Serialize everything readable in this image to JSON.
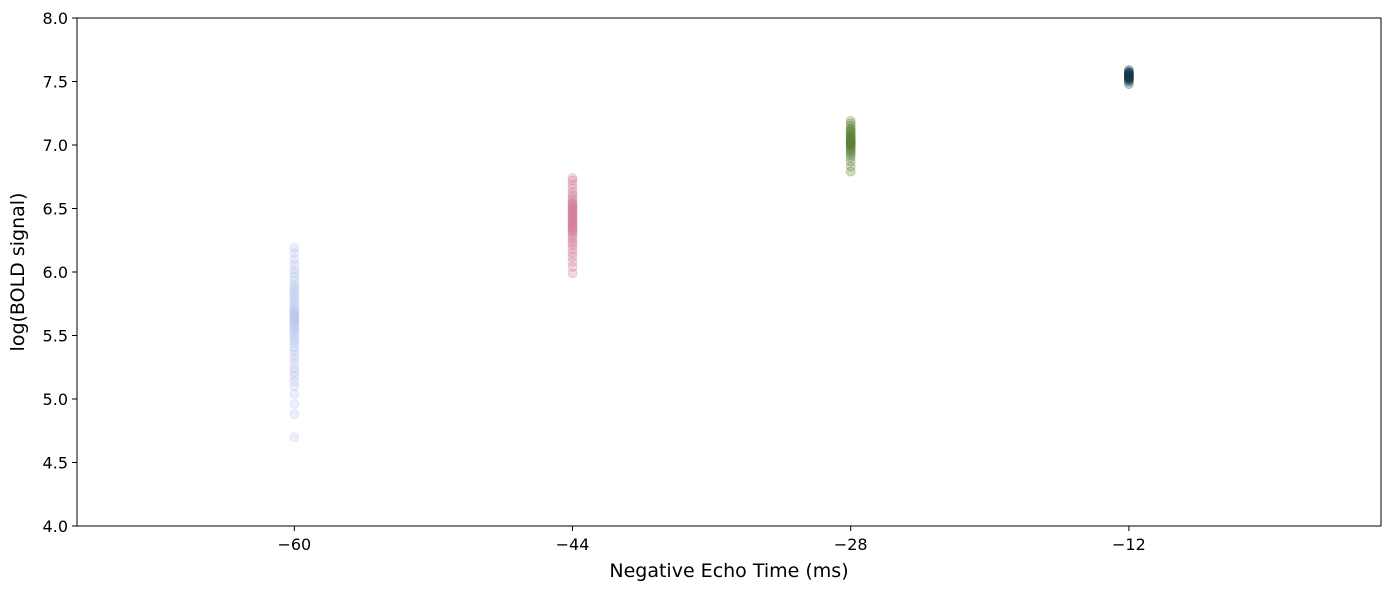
{
  "chart_data": {
    "type": "scatter",
    "title": "",
    "xlabel": "Negative Echo Time (ms)",
    "ylabel": "log(BOLD signal)",
    "xlim": [
      -72.5,
      2.5
    ],
    "ylim": [
      4.0,
      8.0
    ],
    "xticks": [
      -60,
      -44,
      -28,
      -12
    ],
    "xtick_labels": [
      "−60",
      "−44",
      "−28",
      "−12"
    ],
    "yticks": [
      4.0,
      4.5,
      5.0,
      5.5,
      6.0,
      6.5,
      7.0,
      7.5,
      8.0
    ],
    "ytick_labels": [
      "4.0",
      "4.5",
      "5.0",
      "5.5",
      "6.0",
      "6.5",
      "7.0",
      "7.5",
      "8.0"
    ],
    "grid": false,
    "legend": false,
    "series": [
      {
        "color": "#b8c4ee",
        "x": -60,
        "y": [
          4.7,
          4.88,
          4.96,
          5.04,
          5.1,
          5.14,
          5.18,
          5.21,
          5.24,
          5.28,
          5.32,
          5.35,
          5.38,
          5.41,
          5.44,
          5.46,
          5.48,
          5.5,
          5.52,
          5.54,
          5.55,
          5.57,
          5.58,
          5.6,
          5.61,
          5.62,
          5.63,
          5.64,
          5.65,
          5.66,
          5.67,
          5.68,
          5.69,
          5.7,
          5.72,
          5.74,
          5.76,
          5.78,
          5.8,
          5.82,
          5.84,
          5.86,
          5.88,
          5.9,
          5.93,
          5.96,
          5.99,
          6.02,
          6.06,
          6.1,
          6.15,
          6.19
        ]
      },
      {
        "color": "#d07a93",
        "x": -44,
        "y": [
          5.99,
          6.04,
          6.08,
          6.12,
          6.15,
          6.18,
          6.21,
          6.23,
          6.25,
          6.27,
          6.29,
          6.31,
          6.32,
          6.33,
          6.34,
          6.35,
          6.36,
          6.37,
          6.38,
          6.39,
          6.4,
          6.41,
          6.42,
          6.43,
          6.44,
          6.45,
          6.46,
          6.47,
          6.48,
          6.49,
          6.5,
          6.51,
          6.52,
          6.53,
          6.54,
          6.55,
          6.57,
          6.59,
          6.61,
          6.63,
          6.66,
          6.69,
          6.72,
          6.74
        ]
      },
      {
        "color": "#5a8236",
        "x": -28,
        "y": [
          6.79,
          6.83,
          6.87,
          6.9,
          6.92,
          6.94,
          6.95,
          6.96,
          6.97,
          6.98,
          6.99,
          7.0,
          7.0,
          7.01,
          7.01,
          7.02,
          7.02,
          7.03,
          7.03,
          7.04,
          7.04,
          7.05,
          7.05,
          7.06,
          7.07,
          7.08,
          7.09,
          7.1,
          7.11,
          7.12,
          7.13,
          7.15,
          7.17,
          7.19
        ]
      },
      {
        "color": "#173a50",
        "x": -12,
        "y": [
          7.48,
          7.5,
          7.51,
          7.52,
          7.52,
          7.53,
          7.53,
          7.54,
          7.54,
          7.54,
          7.55,
          7.55,
          7.55,
          7.56,
          7.56,
          7.57,
          7.57,
          7.58,
          7.59
        ]
      }
    ]
  }
}
